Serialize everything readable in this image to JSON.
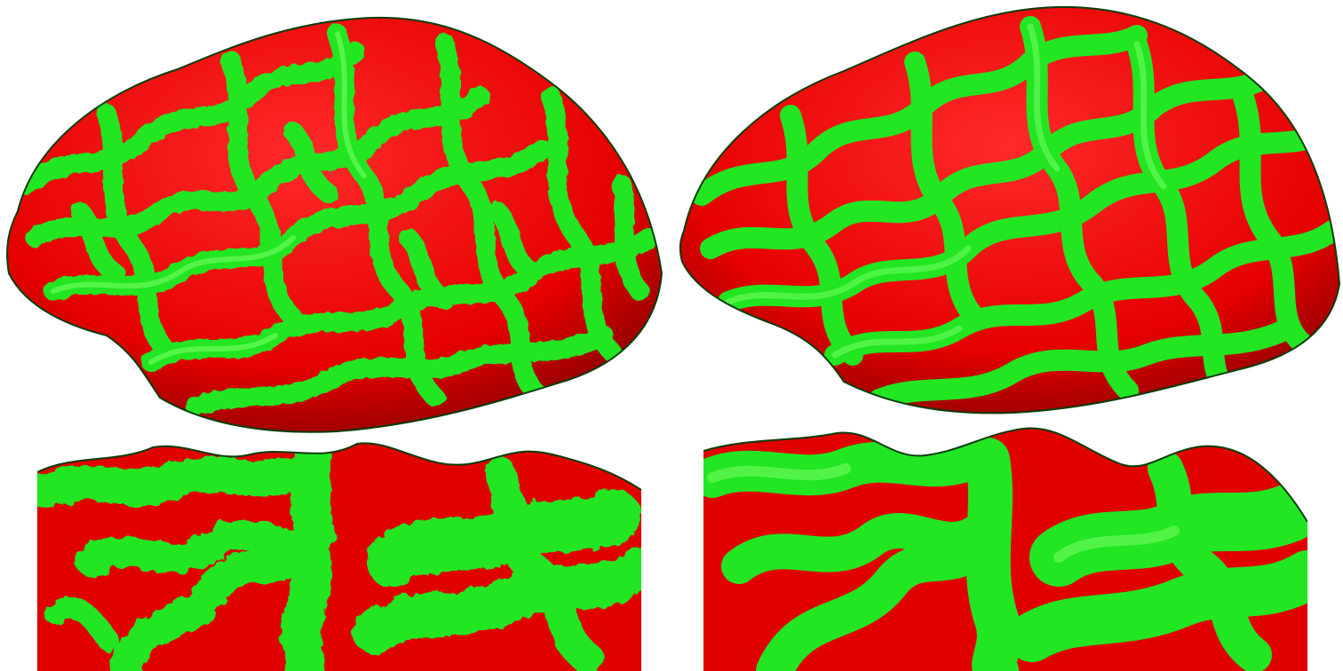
{
  "figure": {
    "panels": [
      {
        "id": "tl",
        "view": "lateral",
        "surface": "noisy"
      },
      {
        "id": "tr",
        "view": "lateral",
        "surface": "smoothed"
      },
      {
        "id": "bl",
        "view": "close-up",
        "surface": "noisy"
      },
      {
        "id": "br",
        "view": "close-up",
        "surface": "smoothed"
      }
    ],
    "colors": {
      "background": "#ffffff",
      "gyri": "#22e622",
      "gyri_highlight": "#6dff5a",
      "sulci": "#ff1a1a",
      "sulci_deep": "#b30000",
      "outline": "#0b3d0b"
    }
  }
}
